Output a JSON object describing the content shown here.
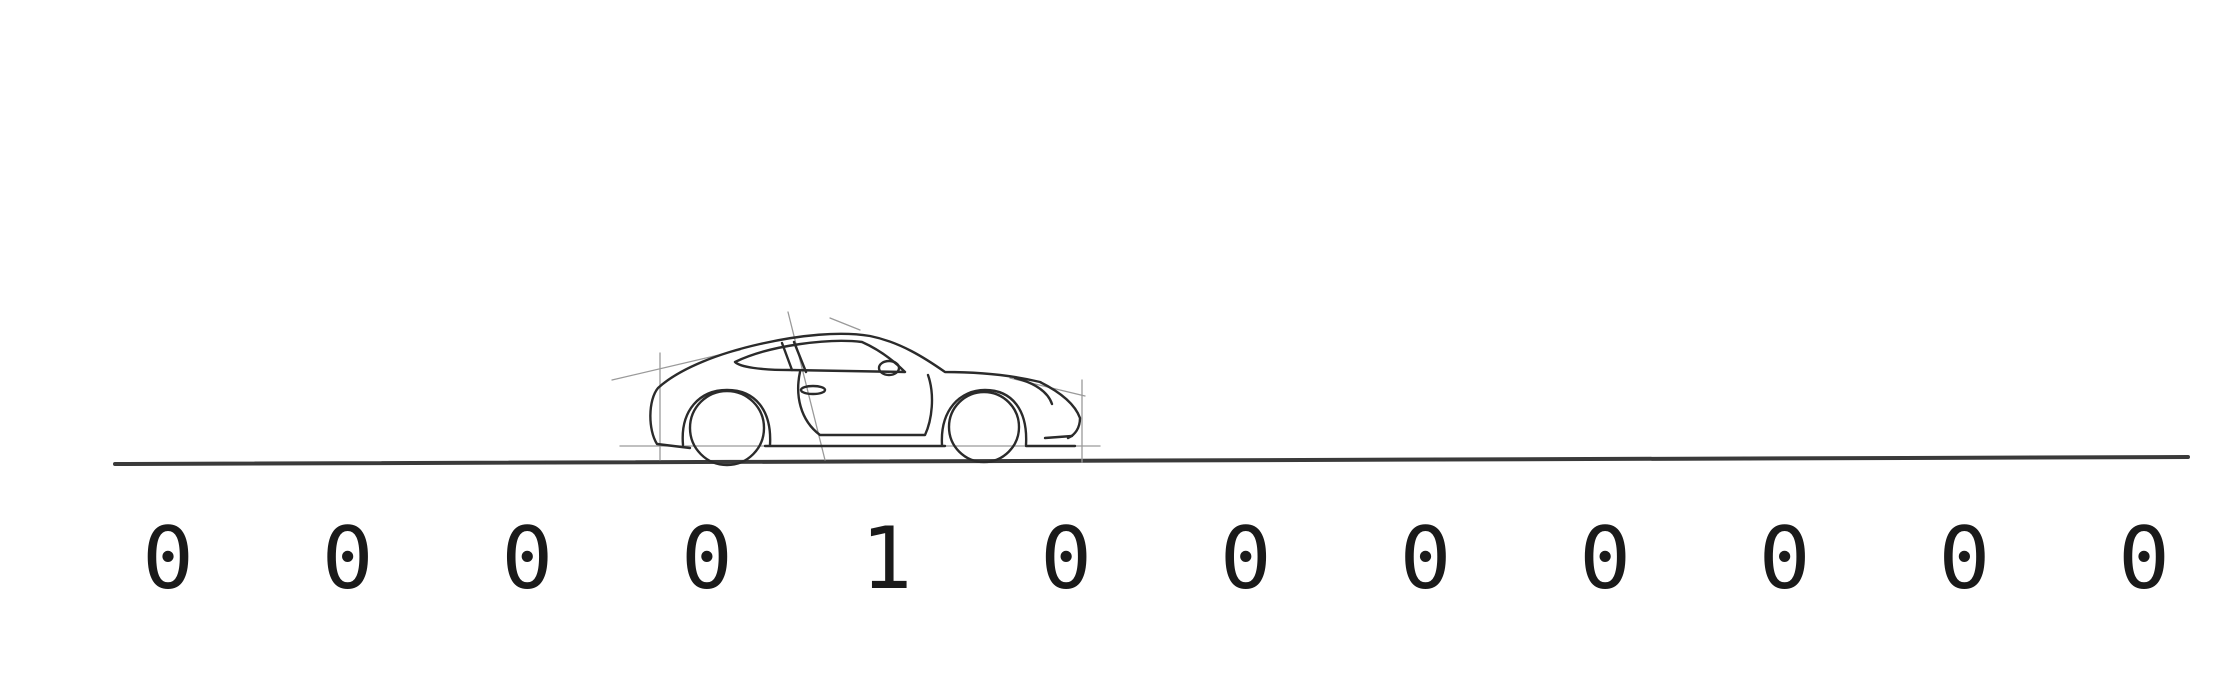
{
  "cells": [
    "0",
    "0",
    "0",
    "0",
    "1",
    "0",
    "0",
    "0",
    "0",
    "0",
    "0",
    "0"
  ],
  "car": {
    "icon": "sports-car-sketch-icon",
    "cell_index": 4
  },
  "colors": {
    "ink": "#1a1a1a",
    "ground": "#3a3a3a",
    "guide": "#9a9a9a"
  }
}
